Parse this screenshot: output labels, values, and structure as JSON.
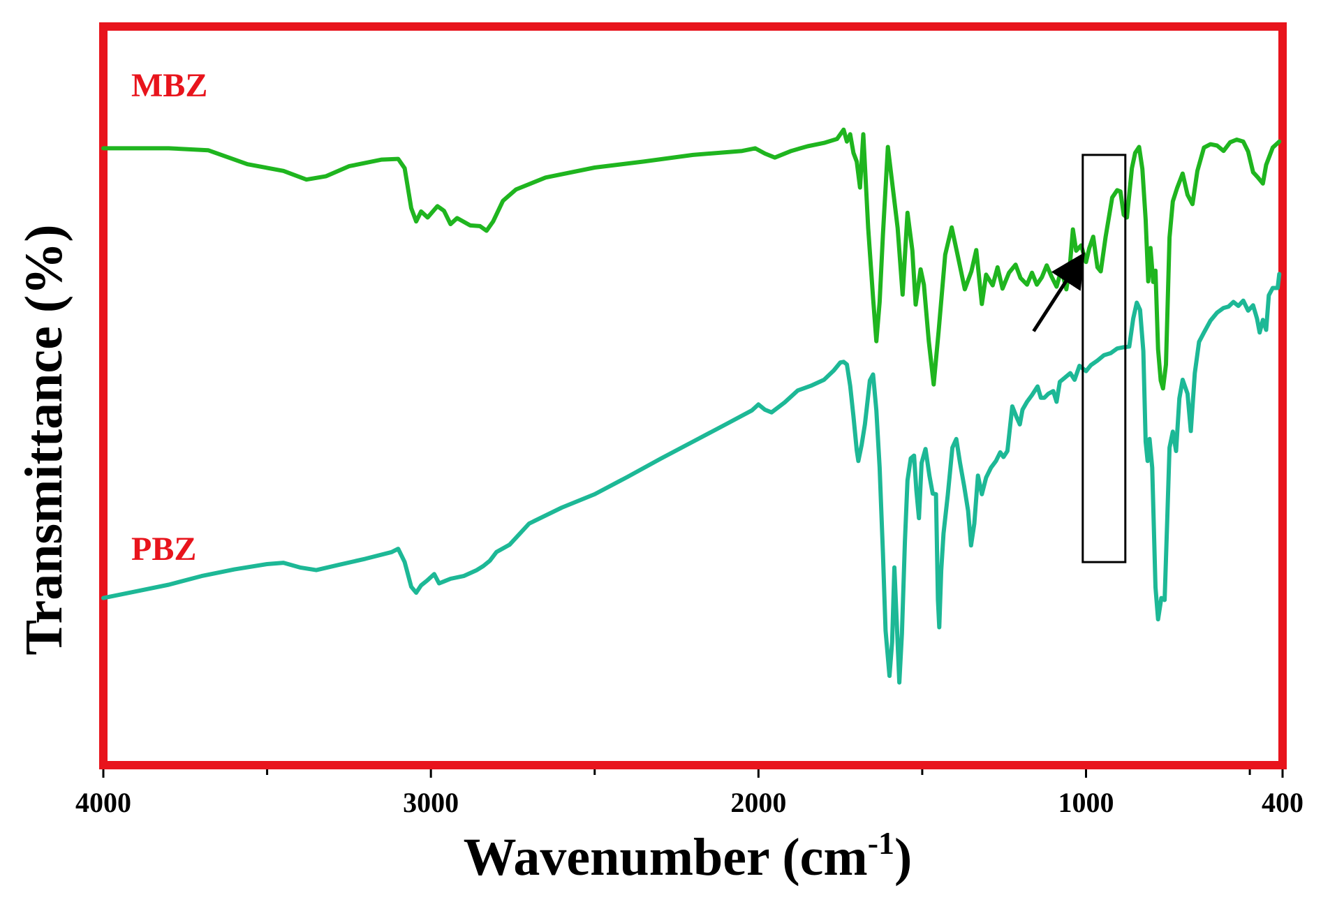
{
  "chart_data": {
    "type": "line",
    "xlabel": "Wavenumber (cm",
    "xlabel_sup": "-1",
    "xlabel_close": ")",
    "ylabel": "Transmittance (%)",
    "xlim": [
      4000,
      400
    ],
    "ylim": [
      0,
      100
    ],
    "x_reversed": true,
    "x_ticks": [
      4000,
      3000,
      2000,
      1000,
      400
    ],
    "x_tick_labels": [
      "4000",
      "3000",
      "2000",
      "1000",
      "400"
    ],
    "x_minor_ticks": [
      3500,
      2500,
      1500,
      500
    ],
    "grid": false,
    "frame_color": "#e8141c",
    "series": [
      {
        "name": "MBZ",
        "color": "#1fb51f",
        "label_color": "#e8141c",
        "points": [
          [
            4000,
            88
          ],
          [
            3800,
            88
          ],
          [
            3680,
            87.7
          ],
          [
            3560,
            85.6
          ],
          [
            3450,
            84.6
          ],
          [
            3380,
            83.3
          ],
          [
            3320,
            83.8
          ],
          [
            3250,
            85.3
          ],
          [
            3150,
            86.3
          ],
          [
            3100,
            86.4
          ],
          [
            3080,
            85.0
          ],
          [
            3060,
            79.0
          ],
          [
            3045,
            77.0
          ],
          [
            3030,
            78.5
          ],
          [
            3010,
            77.6
          ],
          [
            2980,
            79.3
          ],
          [
            2960,
            78.6
          ],
          [
            2940,
            76.6
          ],
          [
            2920,
            77.5
          ],
          [
            2880,
            76.4
          ],
          [
            2850,
            76.3
          ],
          [
            2830,
            75.6
          ],
          [
            2810,
            77.0
          ],
          [
            2780,
            80.1
          ],
          [
            2740,
            81.8
          ],
          [
            2650,
            83.6
          ],
          [
            2500,
            85.1
          ],
          [
            2350,
            86.0
          ],
          [
            2200,
            87.0
          ],
          [
            2050,
            87.6
          ],
          [
            2010,
            88.0
          ],
          [
            1980,
            87.2
          ],
          [
            1950,
            86.6
          ],
          [
            1900,
            87.6
          ],
          [
            1850,
            88.3
          ],
          [
            1800,
            88.8
          ],
          [
            1760,
            89.4
          ],
          [
            1740,
            90.8
          ],
          [
            1730,
            89.0
          ],
          [
            1720,
            90.1
          ],
          [
            1710,
            87.3
          ],
          [
            1700,
            86.0
          ],
          [
            1690,
            82.1
          ],
          [
            1680,
            90.1
          ],
          [
            1665,
            76.0
          ],
          [
            1650,
            65.5
          ],
          [
            1640,
            59.0
          ],
          [
            1630,
            64.9
          ],
          [
            1620,
            75.0
          ],
          [
            1605,
            88.2
          ],
          [
            1590,
            82.1
          ],
          [
            1575,
            76.0
          ],
          [
            1560,
            66.0
          ],
          [
            1545,
            78.3
          ],
          [
            1530,
            72.6
          ],
          [
            1520,
            64.5
          ],
          [
            1505,
            69.8
          ],
          [
            1495,
            67.5
          ],
          [
            1480,
            59.0
          ],
          [
            1465,
            52.5
          ],
          [
            1450,
            60.5
          ],
          [
            1430,
            72.0
          ],
          [
            1410,
            76.1
          ],
          [
            1390,
            71.5
          ],
          [
            1370,
            66.8
          ],
          [
            1350,
            69.5
          ],
          [
            1335,
            72.7
          ],
          [
            1318,
            64.6
          ],
          [
            1305,
            69.0
          ],
          [
            1285,
            67.4
          ],
          [
            1270,
            70.1
          ],
          [
            1255,
            66.9
          ],
          [
            1235,
            69.3
          ],
          [
            1215,
            70.5
          ],
          [
            1200,
            68.5
          ],
          [
            1180,
            67.5
          ],
          [
            1165,
            69.3
          ],
          [
            1150,
            67.5
          ],
          [
            1135,
            68.6
          ],
          [
            1120,
            70.4
          ],
          [
            1105,
            68.7
          ],
          [
            1090,
            67.2
          ],
          [
            1075,
            69.8
          ],
          [
            1060,
            66.8
          ],
          [
            1050,
            69.9
          ],
          [
            1040,
            75.8
          ],
          [
            1030,
            72.6
          ],
          [
            1015,
            73.4
          ],
          [
            1000,
            70.9
          ],
          [
            990,
            73.0
          ],
          [
            978,
            74.7
          ],
          [
            965,
            70.1
          ],
          [
            955,
            69.5
          ],
          [
            940,
            74.7
          ],
          [
            920,
            80.6
          ],
          [
            905,
            81.7
          ],
          [
            895,
            81.5
          ],
          [
            885,
            78.0
          ],
          [
            875,
            77.6
          ],
          [
            860,
            85.0
          ],
          [
            850,
            87.3
          ],
          [
            838,
            88.2
          ],
          [
            828,
            84.9
          ],
          [
            818,
            77.3
          ],
          [
            810,
            68.0
          ],
          [
            803,
            73.0
          ],
          [
            795,
            67.9
          ],
          [
            788,
            69.6
          ],
          [
            780,
            57.8
          ],
          [
            772,
            53.1
          ],
          [
            765,
            51.9
          ],
          [
            756,
            55.5
          ],
          [
            745,
            74.6
          ],
          [
            735,
            80.0
          ],
          [
            722,
            82.0
          ],
          [
            705,
            84.2
          ],
          [
            690,
            81.0
          ],
          [
            675,
            79.6
          ],
          [
            660,
            84.6
          ],
          [
            640,
            88.1
          ],
          [
            620,
            88.6
          ],
          [
            600,
            88.4
          ],
          [
            580,
            87.6
          ],
          [
            560,
            88.9
          ],
          [
            540,
            89.3
          ],
          [
            520,
            89.0
          ],
          [
            505,
            87.5
          ],
          [
            490,
            84.4
          ],
          [
            475,
            83.6
          ],
          [
            460,
            82.7
          ],
          [
            450,
            85.5
          ],
          [
            430,
            88.1
          ],
          [
            410,
            89.0
          ]
        ]
      },
      {
        "name": "PBZ",
        "color": "#1db896",
        "label_color": "#e8141c",
        "points": [
          [
            4000,
            20.4
          ],
          [
            3900,
            21.4
          ],
          [
            3800,
            22.4
          ],
          [
            3700,
            23.7
          ],
          [
            3600,
            24.7
          ],
          [
            3500,
            25.5
          ],
          [
            3450,
            25.7
          ],
          [
            3400,
            25.0
          ],
          [
            3350,
            24.6
          ],
          [
            3280,
            25.4
          ],
          [
            3200,
            26.3
          ],
          [
            3120,
            27.3
          ],
          [
            3100,
            27.8
          ],
          [
            3080,
            25.8
          ],
          [
            3060,
            22.1
          ],
          [
            3045,
            21.2
          ],
          [
            3030,
            22.3
          ],
          [
            3010,
            23.1
          ],
          [
            2990,
            24.0
          ],
          [
            2975,
            22.6
          ],
          [
            2960,
            22.9
          ],
          [
            2940,
            23.3
          ],
          [
            2900,
            23.7
          ],
          [
            2860,
            24.6
          ],
          [
            2840,
            25.2
          ],
          [
            2820,
            26.0
          ],
          [
            2800,
            27.3
          ],
          [
            2760,
            28.4
          ],
          [
            2700,
            31.6
          ],
          [
            2600,
            34.0
          ],
          [
            2500,
            36.0
          ],
          [
            2400,
            38.6
          ],
          [
            2300,
            41.3
          ],
          [
            2200,
            43.9
          ],
          [
            2100,
            46.5
          ],
          [
            2020,
            48.6
          ],
          [
            2000,
            49.5
          ],
          [
            1980,
            48.7
          ],
          [
            1960,
            48.3
          ],
          [
            1920,
            49.8
          ],
          [
            1880,
            51.6
          ],
          [
            1840,
            52.3
          ],
          [
            1800,
            53.2
          ],
          [
            1770,
            54.6
          ],
          [
            1750,
            55.8
          ],
          [
            1740,
            55.9
          ],
          [
            1730,
            55.5
          ],
          [
            1720,
            52.3
          ],
          [
            1710,
            47.7
          ],
          [
            1700,
            42.6
          ],
          [
            1695,
            41.0
          ],
          [
            1685,
            43.4
          ],
          [
            1675,
            46.5
          ],
          [
            1660,
            53.1
          ],
          [
            1650,
            54.0
          ],
          [
            1640,
            48.6
          ],
          [
            1630,
            40.0
          ],
          [
            1620,
            27.2
          ],
          [
            1612,
            15.5
          ],
          [
            1600,
            8.7
          ],
          [
            1592,
            13.8
          ],
          [
            1585,
            25.0
          ],
          [
            1578,
            17.0
          ],
          [
            1570,
            7.7
          ],
          [
            1562,
            15.0
          ],
          [
            1553,
            28.9
          ],
          [
            1545,
            38.1
          ],
          [
            1535,
            41.4
          ],
          [
            1525,
            41.8
          ],
          [
            1518,
            36.6
          ],
          [
            1510,
            32.4
          ],
          [
            1502,
            40.7
          ],
          [
            1490,
            42.8
          ],
          [
            1478,
            38.8
          ],
          [
            1468,
            36.1
          ],
          [
            1458,
            36.0
          ],
          [
            1452,
            20.1
          ],
          [
            1448,
            16.0
          ],
          [
            1442,
            24.5
          ],
          [
            1435,
            30.1
          ],
          [
            1422,
            35.9
          ],
          [
            1408,
            43.0
          ],
          [
            1396,
            44.3
          ],
          [
            1385,
            40.8
          ],
          [
            1372,
            37.2
          ],
          [
            1360,
            33.5
          ],
          [
            1351,
            28.3
          ],
          [
            1341,
            31.6
          ],
          [
            1330,
            38.8
          ],
          [
            1318,
            36.0
          ],
          [
            1305,
            38.5
          ],
          [
            1290,
            40.0
          ],
          [
            1275,
            41.0
          ],
          [
            1262,
            42.3
          ],
          [
            1252,
            41.6
          ],
          [
            1240,
            42.5
          ],
          [
            1225,
            49.2
          ],
          [
            1212,
            47.6
          ],
          [
            1202,
            46.5
          ],
          [
            1194,
            48.7
          ],
          [
            1180,
            49.9
          ],
          [
            1165,
            50.9
          ],
          [
            1148,
            52.2
          ],
          [
            1138,
            50.5
          ],
          [
            1127,
            50.5
          ],
          [
            1115,
            51.1
          ],
          [
            1100,
            51.5
          ],
          [
            1090,
            49.9
          ],
          [
            1080,
            52.9
          ],
          [
            1060,
            53.7
          ],
          [
            1048,
            54.2
          ],
          [
            1035,
            53.2
          ],
          [
            1020,
            55.3
          ],
          [
            1000,
            54.5
          ],
          [
            985,
            55.4
          ],
          [
            965,
            56.1
          ],
          [
            945,
            56.9
          ],
          [
            925,
            57.2
          ],
          [
            905,
            57.9
          ],
          [
            885,
            58.1
          ],
          [
            868,
            58.2
          ],
          [
            856,
            62.4
          ],
          [
            845,
            64.8
          ],
          [
            835,
            63.7
          ],
          [
            825,
            57.5
          ],
          [
            818,
            43.9
          ],
          [
            812,
            41.0
          ],
          [
            806,
            44.3
          ],
          [
            798,
            40.0
          ],
          [
            788,
            22.0
          ],
          [
            780,
            17.2
          ],
          [
            770,
            20.4
          ],
          [
            760,
            20.1
          ],
          [
            752,
            32.4
          ],
          [
            745,
            43.0
          ],
          [
            735,
            45.4
          ],
          [
            725,
            42.5
          ],
          [
            715,
            50.4
          ],
          [
            705,
            53.2
          ],
          [
            690,
            51.1
          ],
          [
            680,
            45.5
          ],
          [
            668,
            54.2
          ],
          [
            655,
            58.9
          ],
          [
            640,
            60.3
          ],
          [
            620,
            62.1
          ],
          [
            600,
            63.3
          ],
          [
            580,
            64.0
          ],
          [
            565,
            64.2
          ],
          [
            550,
            64.9
          ],
          [
            535,
            64.3
          ],
          [
            520,
            65.1
          ],
          [
            505,
            63.6
          ],
          [
            490,
            64.4
          ],
          [
            478,
            62.4
          ],
          [
            470,
            60.3
          ],
          [
            460,
            62.2
          ],
          [
            450,
            60.7
          ],
          [
            442,
            65.9
          ],
          [
            430,
            67.0
          ],
          [
            415,
            67.0
          ],
          [
            410,
            69.1
          ]
        ]
      }
    ],
    "annotations": [
      {
        "type": "box",
        "x_range": [
          1010,
          880
        ],
        "y_range": [
          25.8,
          87.0
        ],
        "color": "#000000"
      },
      {
        "type": "arrow",
        "from": [
          1160,
          60.5
        ],
        "to": [
          1015,
          71.5
        ],
        "color": "#000000"
      }
    ]
  }
}
